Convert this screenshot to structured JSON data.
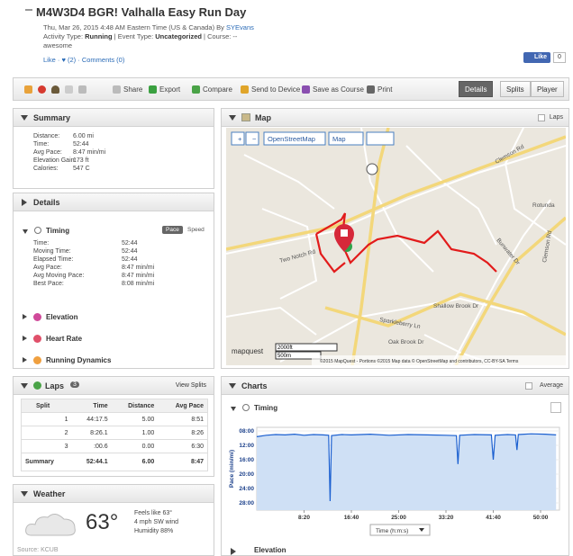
{
  "header": {
    "title": "M4W3D4 BGR! Valhalla Easy Run Day",
    "date": "Thu, Mar 26, 2015 4:48 AM Eastern Time (US & Canada) By",
    "author": "SYEvans",
    "activity_type_label": "Activity Type:",
    "activity_type": "Running",
    "event_type_label": "| Event Type:",
    "event_type": "Uncategorized",
    "course": "| Course: --",
    "description": "awesome",
    "like": "Like",
    "hearts": "· ♥ (2) ·",
    "comments": "Comments (0)",
    "fb_like": "Like",
    "fb_count": "0"
  },
  "toolbar": {
    "actions": [
      "Share",
      "Export",
      "Compare",
      "Send to Device",
      "Save as Course",
      "Print"
    ],
    "tabs": [
      "Details",
      "Splits",
      "Player"
    ]
  },
  "summary": {
    "title": "Summary",
    "rows": [
      [
        "Distance:",
        "6.00 mi"
      ],
      [
        "Time:",
        "52:44"
      ],
      [
        "Avg Pace:",
        "8:47 min/mi"
      ],
      [
        "Elevation Gain:",
        "173 ft"
      ],
      [
        "Calories:",
        "547 C"
      ]
    ]
  },
  "details": {
    "title": "Details",
    "timing": {
      "title": "Timing",
      "toggle": [
        "Pace",
        "Speed"
      ],
      "rows": [
        [
          "Time:",
          "52:44"
        ],
        [
          "Moving Time:",
          "52:44"
        ],
        [
          "Elapsed Time:",
          "52:44"
        ],
        [
          "Avg Pace:",
          "8:47 min/mi"
        ],
        [
          "Avg Moving Pace:",
          "8:47 min/mi"
        ],
        [
          "Best Pace:",
          "8:08 min/mi"
        ]
      ]
    },
    "sections": [
      "Elevation",
      "Heart Rate",
      "Running Dynamics"
    ]
  },
  "laps": {
    "title": "Laps",
    "count": 3,
    "view_splits": "View Splits",
    "columns": [
      "Split",
      "Time",
      "Distance",
      "Avg Pace"
    ],
    "rows": [
      [
        "1",
        "44:17.5",
        "5.00",
        "8:51"
      ],
      [
        "2",
        "8:26.1",
        "1.00",
        "8:26"
      ],
      [
        "3",
        ":00.6",
        "0.00",
        "6:30"
      ],
      [
        "Summary",
        "52:44.1",
        "6.00",
        "8:47"
      ]
    ]
  },
  "weather": {
    "title": "Weather",
    "temperature": "63°",
    "feels_like": "Feels like 63°",
    "wind": "4 mph SW wind",
    "humidity": "Humidity 88%",
    "source": "Source: KCUB"
  },
  "map": {
    "title": "Map",
    "laps_label": "Laps",
    "controls": [
      "+",
      "−",
      "OpenStreetMap",
      "Map"
    ],
    "streets": [
      "Two Notch Rd",
      "Clemson Rd",
      "Sparkleberry Ln",
      "Rotunda",
      "Clemson Rd",
      "Bunwater Dr",
      "Shallow Brook Dr",
      "Oak Brook Dr"
    ],
    "scale": [
      "2000ft",
      "500m"
    ],
    "logo": "mapquest",
    "attribution": "©2015 MapQuest - Portions ©2015 Map data © OpenStreetMap and contributors, CC-BY-SA Terms"
  },
  "charts": {
    "title": "Charts",
    "average_label": "Average",
    "timing": {
      "title": "Timing",
      "y_label": "Pace (min/mi)",
      "x_label": "Time (h:m:s)",
      "color": "#1a5fd0",
      "fill": "#cfe0f5",
      "xlim": [
        0,
        3200
      ],
      "ylim": [
        7,
        30
      ],
      "y_reversed": true,
      "xticks": [
        {
          "value": 500,
          "label": "8:20"
        },
        {
          "value": 1000,
          "label": "16:40"
        },
        {
          "value": 1500,
          "label": "25:00"
        },
        {
          "value": 2000,
          "label": "33:20"
        },
        {
          "value": 2500,
          "label": "41:40"
        },
        {
          "value": 3000,
          "label": "50:00"
        }
      ],
      "yticks": [
        {
          "value": 8,
          "label": "08:00"
        },
        {
          "value": 12,
          "label": "12:00"
        },
        {
          "value": 16,
          "label": "16:00"
        },
        {
          "value": 20,
          "label": "20:00"
        },
        {
          "value": 24,
          "label": "24:00"
        },
        {
          "value": 28,
          "label": "28:00"
        }
      ],
      "x": [
        0,
        100,
        200,
        300,
        400,
        500,
        600,
        700,
        760,
        775,
        790,
        900,
        1000,
        1200,
        1400,
        1600,
        1800,
        2000,
        2110,
        2127,
        2145,
        2300,
        2480,
        2500,
        2520,
        2650,
        2735,
        2750,
        2765,
        2900,
        3050,
        3164
      ],
      "values": [
        9.6,
        9.2,
        9.0,
        9.1,
        8.9,
        9.2,
        9.0,
        9.1,
        9.2,
        27.5,
        9.3,
        9.0,
        9.1,
        8.9,
        9.2,
        9.0,
        9.1,
        9.2,
        9.3,
        17.2,
        9.2,
        9.0,
        9.1,
        16.0,
        9.2,
        9.0,
        9.1,
        13.3,
        9.0,
        8.8,
        8.9,
        9.1
      ]
    },
    "elevation_title": "Elevation"
  }
}
